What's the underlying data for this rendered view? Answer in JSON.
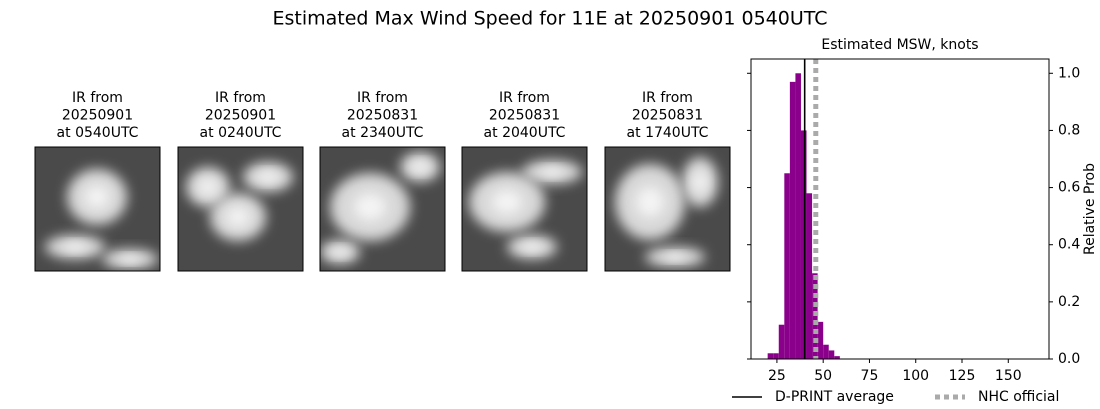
{
  "title": "Estimated Max Wind Speed for 11E at 20250901 0540UTC",
  "panels": [
    {
      "lines": [
        "IR from",
        "20250901",
        "at 0540UTC"
      ]
    },
    {
      "lines": [
        "IR from",
        "20250901",
        "at 0240UTC"
      ]
    },
    {
      "lines": [
        "IR from",
        "20250831",
        "at 2340UTC"
      ]
    },
    {
      "lines": [
        "IR from",
        "20250831",
        "at 2040UTC"
      ]
    },
    {
      "lines": [
        "IR from",
        "20250831",
        "at 1740UTC"
      ]
    }
  ],
  "chart_data": {
    "type": "histogram",
    "title": "Estimated MSW, knots",
    "y_label": "Relative Prob",
    "bins": [
      20,
      23,
      26,
      29,
      32,
      35,
      38,
      41,
      44,
      47,
      50,
      53,
      56,
      59
    ],
    "values": [
      0.02,
      0.02,
      0.12,
      0.65,
      0.97,
      1.0,
      0.8,
      0.58,
      0.3,
      0.13,
      0.05,
      0.03,
      0.01
    ],
    "color": "#8b008b",
    "xlim": [
      11,
      172
    ],
    "ylim": [
      0,
      1.05
    ],
    "xticks": [
      25,
      50,
      75,
      100,
      125,
      150
    ],
    "yticks": [
      {
        "value": 0,
        "label": "0.0"
      },
      {
        "value": 0.2,
        "label": "0.2"
      },
      {
        "value": 0.4,
        "label": "0.4"
      },
      {
        "value": 0.6,
        "label": "0.6"
      },
      {
        "value": 0.8,
        "label": "0.8"
      },
      {
        "value": 1,
        "label": "1.0"
      }
    ],
    "reference_lines": [
      {
        "name": "D-PRINT average",
        "value": 40,
        "color": "#000000",
        "style": "solid"
      },
      {
        "name": "NHC official",
        "value": 46,
        "color": "#aaaaaa",
        "style": "dotted"
      }
    ],
    "legend": "lower center"
  }
}
